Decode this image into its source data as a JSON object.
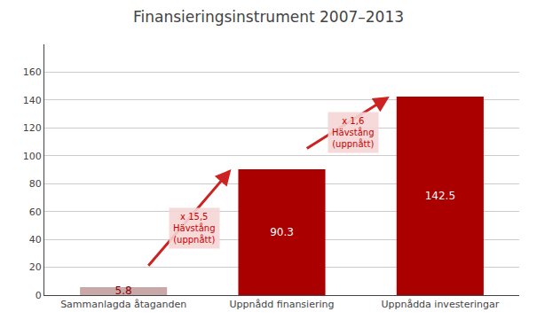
{
  "chart_data": {
    "type": "bar",
    "title": "Finansieringsinstrument 2007–2013",
    "categories": [
      "Sammanlagda åtaganden",
      "Uppnådd finansiering",
      "Uppnådda investeringar"
    ],
    "values": [
      5.8,
      90.3,
      142.5
    ],
    "colors": [
      "#c8a8a8",
      "#aa0000",
      "#aa0000"
    ],
    "data_labels": true,
    "ylim": [
      0,
      180
    ],
    "yticks": [
      0,
      20,
      40,
      60,
      80,
      100,
      120,
      140,
      160
    ],
    "grid": true,
    "annotations": [
      "x 15,5\nHävstång\n(uppnått)",
      "x 1,6\nHävstång\n(uppnått)"
    ]
  }
}
